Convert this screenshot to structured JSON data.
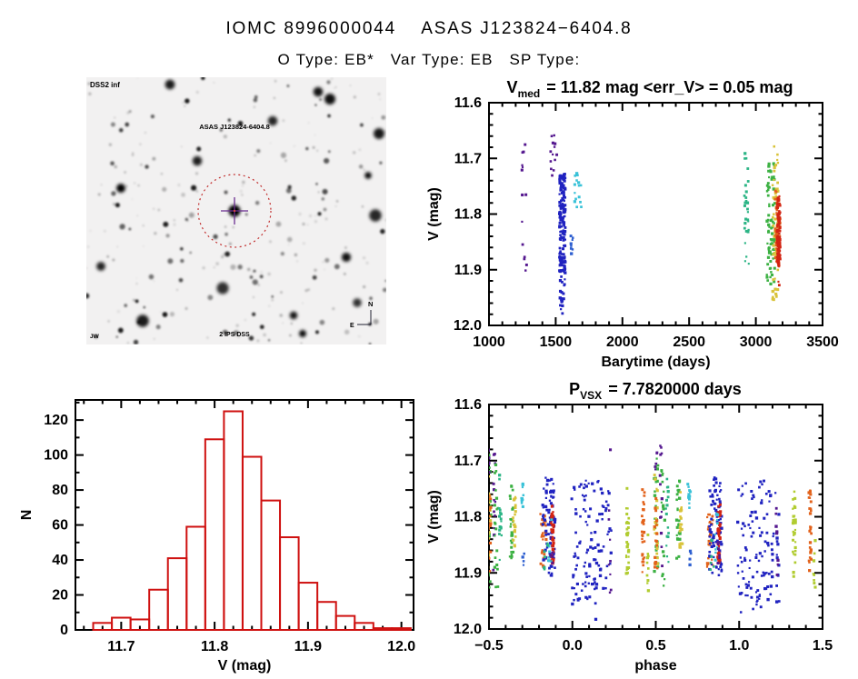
{
  "page": {
    "title_line1": "IOMC 8996000044    ASAS J123824−6404.8",
    "title_line2": "O Type: EB*   Var Type: EB   SP Type:",
    "background": "#ffffff",
    "text_color": "#000000"
  },
  "finding_chart": {
    "corner_label": "DSS2 inf",
    "target_label": "ASAS J123824-6404.8",
    "bottom_label": "2 IPS DSS",
    "bottom_left_label": "JW",
    "compass_north_label": "N",
    "compass_east_label": "E",
    "circle_color": "#c23030",
    "cross_color": "#6a2d8f",
    "blue_label_color": "#2a2a99",
    "red_label_color": "#cc3333"
  },
  "palette": {
    "purple": "#55188f",
    "blue": "#2023c0",
    "lightblue": "#2e5fd0",
    "cyan": "#3ac2d8",
    "seagreen": "#2db586",
    "green": "#3cb143",
    "yellowgreen": "#b1cc30",
    "yellow": "#d9c33a",
    "orange": "#e2621b",
    "red": "#d32413"
  },
  "chart_data": [
    {
      "id": "lightcurve",
      "type": "scatter",
      "title": {
        "base": "V",
        "sub": "med",
        "rest": "=  11.82 mag  <err_V>  =  0.05 mag"
      },
      "xlabel": "Barytime (days)",
      "ylabel": "V (mag)",
      "xlim": [
        1000,
        3500
      ],
      "ylim": [
        11.6,
        12.0
      ],
      "xticks": [
        1000,
        1500,
        2000,
        2500,
        3000,
        3500
      ],
      "xtick_labels": [
        "1000",
        "1500",
        "2000",
        "2500",
        "3000",
        "3500"
      ],
      "xminor": 100,
      "yticks": [
        11.6,
        11.7,
        11.8,
        11.9,
        12.0
      ],
      "ytick_labels": [
        "11.6",
        "11.7",
        "11.8",
        "11.9",
        "12.0"
      ],
      "yminor": 0.02,
      "clusters": [
        {
          "x": 1270,
          "dx": 24,
          "ylo": 11.675,
          "yhi": 11.91,
          "n": 14,
          "color": "purple"
        },
        {
          "x": 1487,
          "dx": 25,
          "ylo": 11.655,
          "yhi": 11.735,
          "n": 13,
          "color": "purple"
        },
        {
          "x": 1550,
          "dx": 22,
          "ylo": 11.725,
          "yhi": 11.905,
          "n": 170,
          "color": "blue"
        },
        {
          "x": 1551,
          "dx": 20,
          "ylo": 11.895,
          "yhi": 11.985,
          "n": 22,
          "color": "blue"
        },
        {
          "x": 1619,
          "dx": 15,
          "ylo": 11.835,
          "yhi": 11.885,
          "n": 8,
          "color": "lightblue"
        },
        {
          "x": 1669,
          "dx": 28,
          "ylo": 11.725,
          "yhi": 11.79,
          "n": 16,
          "color": "cyan"
        },
        {
          "x": 2929,
          "dx": 20,
          "ylo": 11.69,
          "yhi": 11.895,
          "n": 28,
          "color": "seagreen"
        },
        {
          "x": 3112,
          "dx": 30,
          "ylo": 11.7,
          "yhi": 11.93,
          "n": 75,
          "color": "green"
        },
        {
          "x": 3146,
          "dx": 20,
          "ylo": 11.675,
          "yhi": 11.955,
          "n": 55,
          "color": "yellow"
        },
        {
          "x": 3164,
          "dx": 18,
          "ylo": 11.755,
          "yhi": 11.9,
          "n": 60,
          "color": "orange"
        },
        {
          "x": 3171,
          "dx": 11,
          "ylo": 11.765,
          "yhi": 11.895,
          "n": 90,
          "color": "red"
        },
        {
          "x": 3173,
          "dx": 6,
          "ylo": 11.915,
          "yhi": 11.93,
          "n": 2,
          "color": "red"
        }
      ]
    },
    {
      "id": "histogram",
      "type": "histogram",
      "xlabel": "V (mag)",
      "ylabel": "N",
      "bin_start": 11.67,
      "bin_width": 0.02,
      "values": [
        4,
        7,
        6,
        23,
        41,
        59,
        109,
        125,
        99,
        74,
        53,
        27,
        16,
        8,
        4,
        1,
        1
      ],
      "xlim": [
        11.651,
        12.013
      ],
      "ylim": [
        0,
        131.5
      ],
      "xticks": [
        11.7,
        11.8,
        11.9,
        12.0
      ],
      "xtick_labels": [
        "11.7",
        "11.8",
        "11.9",
        "12.0"
      ],
      "xminor": 0.02,
      "yticks": [
        0,
        20,
        40,
        60,
        80,
        100,
        120
      ],
      "ytick_labels": [
        "0",
        "20",
        "40",
        "60",
        "80",
        "100",
        "120"
      ],
      "yminor": 10,
      "color": "#cf1110"
    },
    {
      "id": "phased",
      "type": "scatter",
      "repeat": 1.0,
      "title": {
        "base": "P",
        "sub": "VSX",
        "rest": "=  7.7820000 days"
      },
      "xlabel": "phase",
      "ylabel": "V (mag)",
      "xlim": [
        -0.5,
        1.5
      ],
      "ylim": [
        11.6,
        12.0
      ],
      "xticks": [
        -0.5,
        0.0,
        0.5,
        1.0,
        1.5
      ],
      "xtick_labels": [
        "−0.5",
        "0.0",
        "0.5",
        "1.0",
        "1.5"
      ],
      "xminor": 0.1,
      "yticks": [
        11.6,
        11.7,
        11.8,
        11.9,
        12.0
      ],
      "ytick_labels": [
        "11.6",
        "11.7",
        "11.8",
        "11.9",
        "12.0"
      ],
      "yminor": 0.02,
      "clusters": [
        {
          "x": -0.5,
          "dx": 0.014,
          "ylo": 11.69,
          "yhi": 11.935,
          "n": 26,
          "color": "green"
        },
        {
          "x": -0.5,
          "dx": 0.011,
          "ylo": 11.72,
          "yhi": 11.9,
          "n": 22,
          "color": "yellow"
        },
        {
          "x": -0.498,
          "dx": 0.009,
          "ylo": 11.76,
          "yhi": 11.9,
          "n": 16,
          "color": "orange"
        },
        {
          "x": -0.498,
          "dx": 0.007,
          "ylo": 11.665,
          "yhi": 11.725,
          "n": 5,
          "color": "purple"
        },
        {
          "x": -0.468,
          "dx": 0.007,
          "ylo": 11.67,
          "yhi": 11.895,
          "n": 13,
          "color": "purple"
        },
        {
          "x": -0.455,
          "dx": 0.011,
          "ylo": 11.7,
          "yhi": 11.935,
          "n": 20,
          "color": "green"
        },
        {
          "x": -0.432,
          "dx": 0.009,
          "ylo": 11.725,
          "yhi": 11.885,
          "n": 16,
          "color": "seagreen"
        },
        {
          "x": -0.365,
          "dx": 0.01,
          "ylo": 11.73,
          "yhi": 11.885,
          "n": 26,
          "color": "green"
        },
        {
          "x": -0.348,
          "dx": 0.008,
          "ylo": 11.755,
          "yhi": 11.855,
          "n": 20,
          "color": "yellow"
        },
        {
          "x": -0.3,
          "dx": 0.008,
          "ylo": 11.735,
          "yhi": 11.79,
          "n": 12,
          "color": "cyan"
        },
        {
          "x": -0.294,
          "dx": 0.005,
          "ylo": 11.845,
          "yhi": 11.89,
          "n": 4,
          "color": "lightblue"
        },
        {
          "x": -0.175,
          "dx": 0.018,
          "ylo": 11.795,
          "yhi": 11.89,
          "n": 28,
          "color": "orange"
        },
        {
          "x": -0.14,
          "dx": 0.038,
          "ylo": 11.73,
          "yhi": 11.905,
          "n": 85,
          "color": "blue"
        },
        {
          "x": -0.12,
          "dx": 0.008,
          "ylo": 11.775,
          "yhi": 11.885,
          "n": 40,
          "color": "red"
        },
        {
          "x": -0.135,
          "dx": 0.012,
          "ylo": 11.79,
          "yhi": 11.885,
          "n": 9,
          "color": "cyan"
        },
        {
          "x": -0.125,
          "dx": 0.008,
          "ylo": 11.835,
          "yhi": 11.885,
          "n": 6,
          "color": "purple"
        },
        {
          "x": -0.16,
          "dx": 0.012,
          "ylo": 11.84,
          "yhi": 11.9,
          "n": 6,
          "color": "seagreen"
        },
        {
          "x": 0.115,
          "dx": 0.125,
          "ylo": 11.735,
          "yhi": 11.955,
          "n": 110,
          "color": "blue"
        },
        {
          "x": 0.09,
          "dx": 0.1,
          "ylo": 11.9,
          "yhi": 11.99,
          "n": 9,
          "color": "blue"
        },
        {
          "x": 0.225,
          "dx": 0.008,
          "ylo": 11.68,
          "yhi": 11.935,
          "n": 9,
          "color": "purple"
        },
        {
          "x": 0.33,
          "dx": 0.008,
          "ylo": 11.745,
          "yhi": 11.91,
          "n": 32,
          "color": "yellowgreen"
        },
        {
          "x": 0.425,
          "dx": 0.008,
          "ylo": 11.75,
          "yhi": 11.9,
          "n": 30,
          "color": "orange"
        },
        {
          "x": 0.452,
          "dx": 0.007,
          "ylo": 11.83,
          "yhi": 11.935,
          "n": 10,
          "color": "yellowgreen"
        }
      ]
    }
  ]
}
